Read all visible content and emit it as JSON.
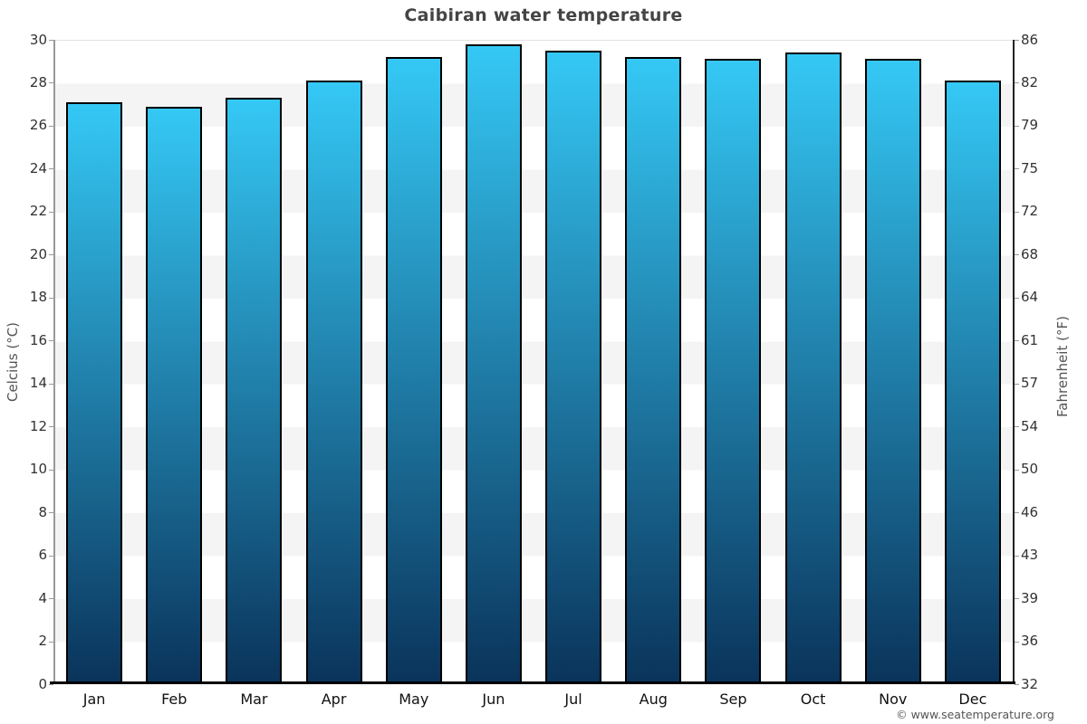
{
  "page": {
    "title": "Caibiran water temperature",
    "footer": "© www.seatemperature.org"
  },
  "chart_data": {
    "type": "bar",
    "title": "Caibiran water temperature",
    "categories": [
      "Jan",
      "Feb",
      "Mar",
      "Apr",
      "May",
      "Jun",
      "Jul",
      "Aug",
      "Sep",
      "Oct",
      "Nov",
      "Dec"
    ],
    "values": [
      27.1,
      26.9,
      27.3,
      28.1,
      29.2,
      29.8,
      29.5,
      29.2,
      29.1,
      29.4,
      29.1,
      28.1
    ],
    "unit": "°C",
    "ylabel_left": "Celcius (°C)",
    "ylabel_right": "Fahrenheit (°F)",
    "ylim_celsius": [
      0,
      30
    ],
    "ytick_step_celsius": 2,
    "yticks_celsius": [
      "30",
      "28",
      "26",
      "24",
      "22",
      "20",
      "18",
      "16",
      "14",
      "12",
      "10",
      "8",
      "6",
      "4",
      "2",
      "0"
    ],
    "yticks_fahrenheit": [
      "86",
      "82",
      "79",
      "75",
      "72",
      "68",
      "64",
      "61",
      "57",
      "54",
      "50",
      "46",
      "43",
      "39",
      "36",
      "32"
    ],
    "grid": "alternating horizontal bands, 2°C each",
    "legend": "none",
    "colors": {
      "bar_gradient_top": "#35c8f5",
      "bar_gradient_bottom": "#0a335a",
      "bar_border": "#000000",
      "band_gray": "#f4f4f4",
      "band_white": "#ffffff",
      "axis_line_left": "#999999",
      "axis_line_right": "#222222",
      "baseline": "#000000",
      "title_text": "#444444",
      "tick_text": "#333333",
      "month_text": "#111111",
      "axis_title_text": "#555555",
      "footer_text": "#555555"
    }
  }
}
